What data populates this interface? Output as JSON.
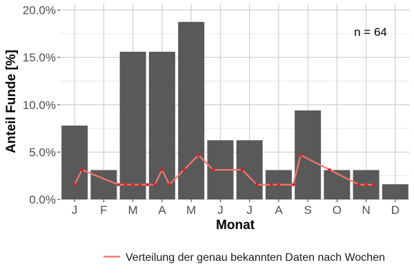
{
  "chart_data": {
    "type": "bar",
    "xlabel": "Monat",
    "ylabel": "Anteil Funde [%]",
    "ylim": [
      0,
      20.7
    ],
    "y_ticks": [
      "0.0%",
      "5.0%",
      "10.0%",
      "15.0%",
      "20.0%"
    ],
    "y_tick_values": [
      0,
      5,
      10,
      15,
      20
    ],
    "categories": [
      "J",
      "F",
      "M",
      "A",
      "M",
      "J",
      "J",
      "A",
      "S",
      "O",
      "N",
      "D"
    ],
    "values": [
      7.8,
      3.1,
      15.6,
      15.6,
      18.75,
      6.25,
      6.25,
      3.1,
      9.4,
      3.1,
      3.1,
      1.6
    ],
    "bar_color": "#595959",
    "annotation": "n = 64",
    "grid": true,
    "legend_position": "bottom",
    "line_series": {
      "name": "Verteilung der genau bekannten Daten nach Wochen",
      "color": "#f8766d",
      "point_color": "#e41a1c",
      "x_month_positions": [
        0.5,
        0.75,
        2.0,
        2.25,
        2.5,
        2.75,
        3.0,
        3.25,
        3.5,
        3.75,
        4.25,
        4.75,
        5.25,
        6.25,
        6.75,
        7.25,
        7.5,
        8.0,
        8.25,
        9.25,
        10.25,
        10.5,
        10.75
      ],
      "values": [
        1.56,
        3.13,
        1.56,
        1.56,
        1.56,
        1.56,
        1.56,
        1.56,
        3.13,
        1.56,
        3.13,
        4.69,
        3.13,
        3.13,
        1.56,
        1.56,
        1.56,
        1.56,
        4.69,
        3.13,
        1.56,
        1.56,
        1.56
      ]
    }
  }
}
